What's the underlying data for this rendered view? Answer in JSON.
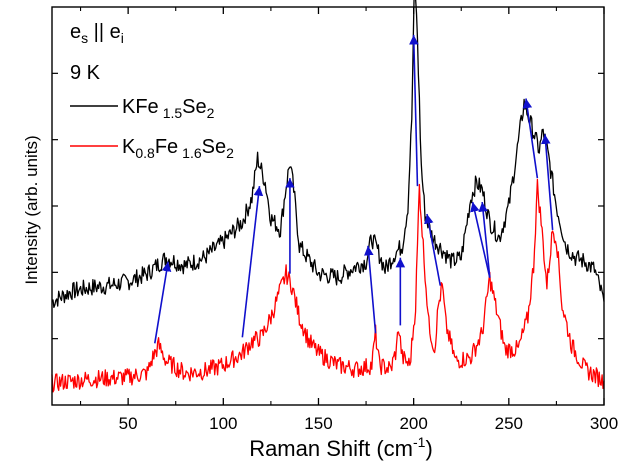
{
  "chart_data": {
    "type": "line",
    "xlabel": "Raman Shift (cm",
    "xlabel_sup": "-1",
    "xlabel_close": ")",
    "ylabel": "Intensity (arb. units)",
    "xlim": [
      10,
      300
    ],
    "ylim": [
      0,
      10
    ],
    "x_ticks": [
      50,
      100,
      150,
      200,
      250,
      300
    ],
    "y_ticks_labeled": false,
    "grid": false,
    "legend_position": "top-left",
    "annotations": {
      "polarization": {
        "e1": "e",
        "s1": "s",
        "bars": " || ",
        "e2": "e",
        "s2": "i"
      },
      "temperature": "9 K"
    },
    "series": [
      {
        "name": "KFe1.5Se2",
        "legend": {
          "p1": "KFe",
          "s1": "1.5",
          "p2": "Se",
          "s2": "2"
        },
        "color": "#000000",
        "points": [
          [
            10,
            2.6
          ],
          [
            20,
            2.85
          ],
          [
            30,
            2.95
          ],
          [
            40,
            3.0
          ],
          [
            50,
            3.1
          ],
          [
            60,
            3.3
          ],
          [
            65,
            3.5
          ],
          [
            70,
            3.7
          ],
          [
            75,
            3.6
          ],
          [
            80,
            3.5
          ],
          [
            90,
            3.7
          ],
          [
            100,
            4.1
          ],
          [
            110,
            4.6
          ],
          [
            115,
            5.2
          ],
          [
            118,
            6.2
          ],
          [
            122,
            5.6
          ],
          [
            125,
            4.7
          ],
          [
            130,
            4.4
          ],
          [
            133,
            5.5
          ],
          [
            135,
            6.1
          ],
          [
            137,
            5.4
          ],
          [
            140,
            4.0
          ],
          [
            150,
            3.3
          ],
          [
            160,
            3.2
          ],
          [
            170,
            3.5
          ],
          [
            175,
            3.6
          ],
          [
            178,
            4.2
          ],
          [
            181,
            3.9
          ],
          [
            185,
            3.4
          ],
          [
            190,
            3.8
          ],
          [
            194,
            4.0
          ],
          [
            197,
            5.0
          ],
          [
            199,
            7.2
          ],
          [
            200.5,
            10.8
          ],
          [
            202,
            9.2
          ],
          [
            204,
            6.0
          ],
          [
            206,
            4.8
          ],
          [
            210,
            4.2
          ],
          [
            215,
            3.9
          ],
          [
            220,
            3.6
          ],
          [
            225,
            3.7
          ],
          [
            230,
            5.2
          ],
          [
            233,
            5.6
          ],
          [
            236,
            5.4
          ],
          [
            240,
            4.6
          ],
          [
            245,
            4.2
          ],
          [
            250,
            5.0
          ],
          [
            255,
            6.6
          ],
          [
            258,
            7.6
          ],
          [
            262,
            7.0
          ],
          [
            266,
            6.4
          ],
          [
            268,
            6.9
          ],
          [
            271,
            6.2
          ],
          [
            275,
            5.0
          ],
          [
            280,
            4.0
          ],
          [
            285,
            3.7
          ],
          [
            290,
            3.6
          ],
          [
            295,
            3.4
          ],
          [
            300,
            2.6
          ]
        ]
      },
      {
        "name": "K0.8Fe1.6Se2",
        "legend": {
          "p1": "K",
          "s1": "0.8",
          "p2": "Fe",
          "s2": "1.6",
          "p3": "Se",
          "s3": "2"
        },
        "color": "#ff0000",
        "points": [
          [
            10,
            0.55
          ],
          [
            30,
            0.65
          ],
          [
            50,
            0.7
          ],
          [
            60,
            0.8
          ],
          [
            63,
            1.2
          ],
          [
            66,
            1.5
          ],
          [
            70,
            1.1
          ],
          [
            80,
            0.8
          ],
          [
            90,
            0.85
          ],
          [
            100,
            1.0
          ],
          [
            110,
            1.3
          ],
          [
            115,
            1.6
          ],
          [
            120,
            1.7
          ],
          [
            125,
            2.2
          ],
          [
            130,
            2.9
          ],
          [
            133,
            3.3
          ],
          [
            136,
            3.0
          ],
          [
            140,
            2.2
          ],
          [
            145,
            1.6
          ],
          [
            150,
            1.3
          ],
          [
            160,
            1.0
          ],
          [
            170,
            0.9
          ],
          [
            178,
            1.0
          ],
          [
            180,
            1.8
          ],
          [
            182,
            1.0
          ],
          [
            188,
            0.9
          ],
          [
            191,
            1.4
          ],
          [
            192,
            2.0
          ],
          [
            194,
            1.2
          ],
          [
            198,
            1.0
          ],
          [
            201,
            2.5
          ],
          [
            203,
            5.5
          ],
          [
            205,
            4.0
          ],
          [
            208,
            2.0
          ],
          [
            211,
            1.4
          ],
          [
            213,
            2.5
          ],
          [
            215,
            3.0
          ],
          [
            217,
            2.0
          ],
          [
            222,
            1.1
          ],
          [
            230,
            1.2
          ],
          [
            236,
            1.8
          ],
          [
            240,
            3.2
          ],
          [
            243,
            2.5
          ],
          [
            248,
            1.4
          ],
          [
            255,
            1.4
          ],
          [
            260,
            2.2
          ],
          [
            263,
            3.5
          ],
          [
            265,
            5.5
          ],
          [
            267,
            4.6
          ],
          [
            270,
            3.0
          ],
          [
            273,
            4.4
          ],
          [
            275,
            4.2
          ],
          [
            278,
            2.5
          ],
          [
            283,
            1.5
          ],
          [
            290,
            0.9
          ],
          [
            300,
            0.6
          ]
        ]
      }
    ],
    "arrows": [
      [
        64,
        1.55,
        71,
        3.6
      ],
      [
        110,
        1.7,
        119,
        5.5
      ],
      [
        135,
        3.3,
        135,
        5.7
      ],
      [
        180,
        1.8,
        176,
        4.0
      ],
      [
        193,
        2.0,
        193,
        3.7
      ],
      [
        202,
        5.5,
        200,
        9.3
      ],
      [
        214,
        3.0,
        207,
        4.8
      ],
      [
        240,
        3.2,
        231,
        5.1
      ],
      [
        240,
        3.2,
        236,
        5.1
      ],
      [
        265,
        5.7,
        259,
        7.7
      ],
      [
        273,
        4.4,
        269,
        6.8
      ]
    ],
    "arrow_color": "#1010cc"
  }
}
